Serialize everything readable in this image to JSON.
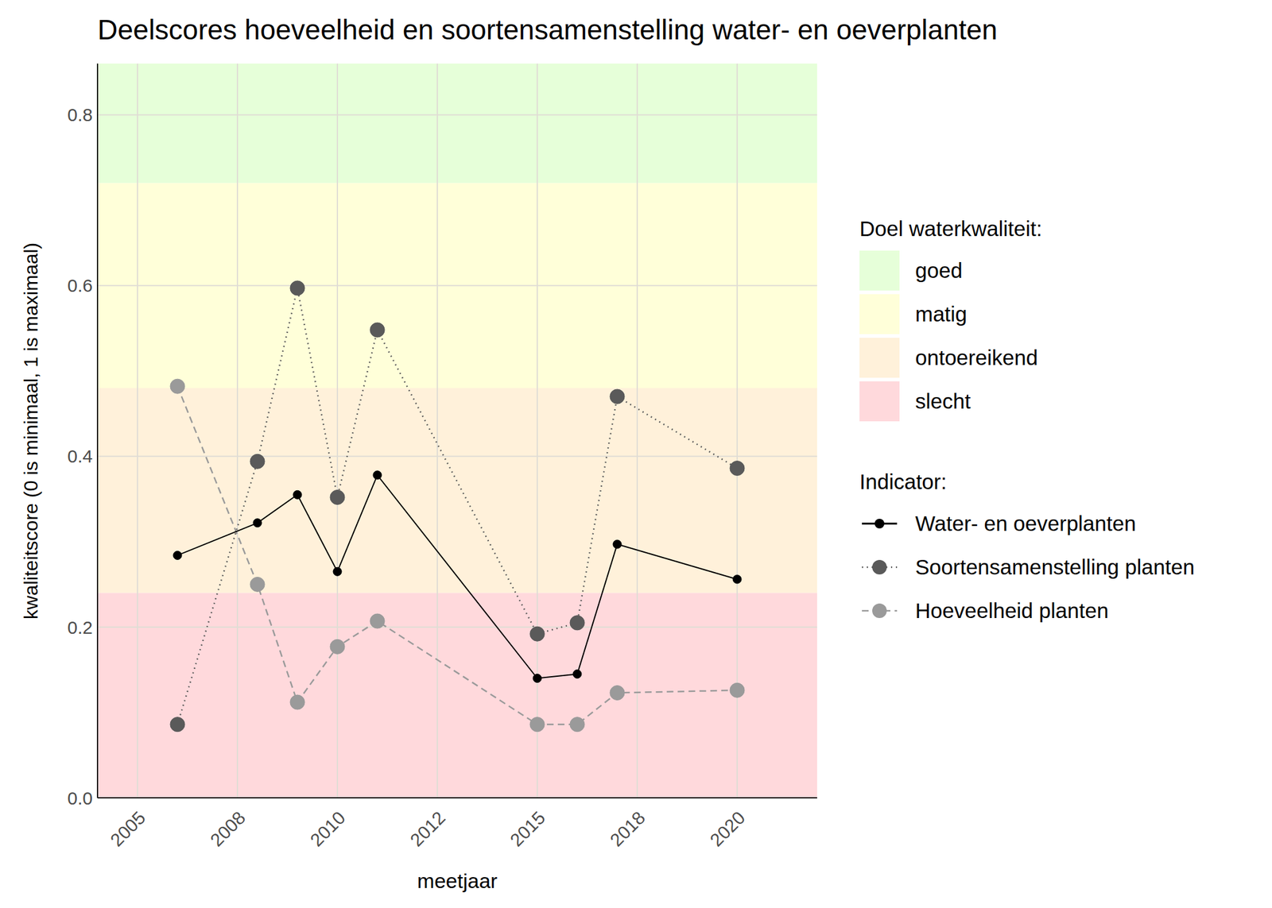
{
  "chart_data": {
    "type": "line",
    "title": "Deelscores hoeveelheid en soortensamenstelling water- en oeverplanten",
    "x_label": "meetjaar",
    "y_label": "kwaliteitscore (0 is minimaal, 1 is maximaal)",
    "x": [
      2006,
      2008,
      2009,
      2010,
      2011,
      2015,
      2016,
      2017,
      2020
    ],
    "series": [
      {
        "name": "Water- en oeverplanten",
        "color": "#000000",
        "line_style": "solid",
        "marker": "circle",
        "values": [
          0.284,
          0.322,
          0.355,
          0.265,
          0.378,
          0.14,
          0.145,
          0.297,
          0.256
        ]
      },
      {
        "name": "Soortensamenstelling planten",
        "color": "#5a5a5a",
        "line_style": "dotted",
        "marker": "circle",
        "values": [
          0.086,
          0.394,
          0.597,
          0.352,
          0.548,
          0.192,
          0.205,
          0.47,
          0.386
        ]
      },
      {
        "name": "Hoeveelheid planten",
        "color": "#9a9a9a",
        "line_style": "dashed",
        "marker": "circle",
        "values": [
          0.482,
          0.25,
          0.112,
          0.177,
          0.207,
          0.086,
          0.086,
          0.123,
          0.126
        ]
      }
    ],
    "xlim": [
      2004,
      2022
    ],
    "xticks": [
      2005,
      {
        "value": 2007.5,
        "label": "2008"
      },
      2010,
      {
        "value": 2012.5,
        "label": "2012"
      },
      2015,
      {
        "value": 2017.5,
        "label": "2018"
      },
      2020
    ],
    "ylim": [
      0,
      0.86
    ],
    "yticks": [
      {
        "value": 0,
        "label": "0.0"
      },
      0.2,
      0.4,
      0.6,
      0.8
    ],
    "grid": true,
    "bands_title": "Doel waterkwaliteit:",
    "bands": [
      {
        "name": "goed",
        "color": "#e6ffd9",
        "from": 0.72,
        "to": 1
      },
      {
        "name": "matig",
        "color": "#ffffd9",
        "from": 0.48,
        "to": 0.72
      },
      {
        "name": "ontoereikend",
        "color": "#fff1da",
        "from": 0.24,
        "to": 0.48
      },
      {
        "name": "slecht",
        "color": "#ffd9dc",
        "from": 0,
        "to": 0.24
      }
    ],
    "series_title": "Indicator:"
  }
}
